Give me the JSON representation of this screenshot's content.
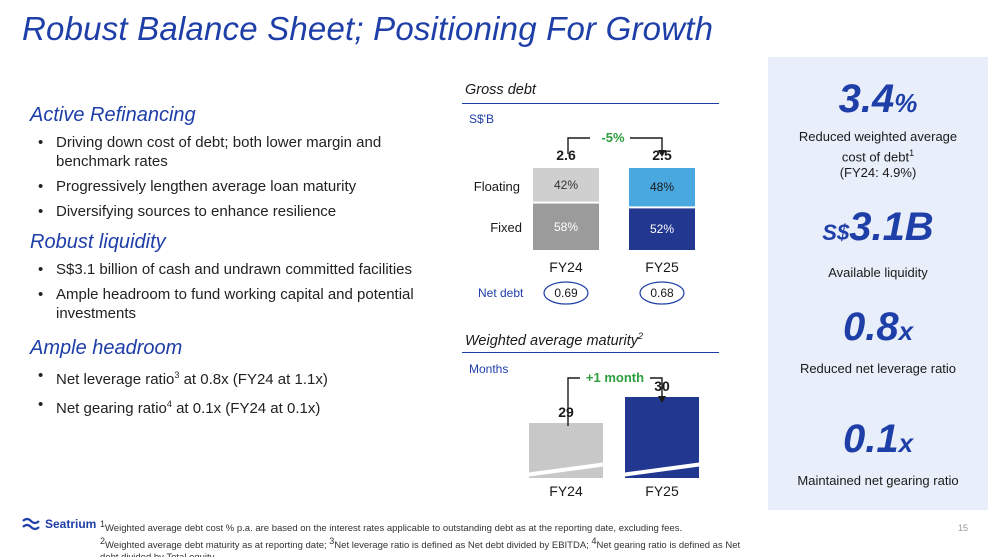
{
  "title": "Robust Balance Sheet; Positioning For Growth",
  "sections": [
    {
      "heading": "Active Refinancing",
      "bullets": [
        "Driving down cost of debt; both lower margin and benchmark rates",
        "Progressively lengthen average loan maturity",
        "Diversifying sources to enhance resilience"
      ]
    },
    {
      "heading": "Robust liquidity",
      "bullets": [
        "S$3.1 billion of cash and undrawn committed facilities",
        "Ample headroom to fund working capital and potential investments"
      ]
    },
    {
      "heading": "Ample headroom",
      "bullets": [
        {
          "pre": "Net leverage ratio",
          "sup": "3",
          "post": " at 0.8x (FY24 at 1.1x)"
        },
        {
          "pre": "Net gearing ratio",
          "sup": "4",
          "post": " at 0.1x (FY24 at 0.1x)"
        }
      ]
    }
  ],
  "gross_debt": {
    "title": "Gross debt",
    "unit": "S$'B",
    "change": "-5%",
    "row_labels": {
      "floating": "Floating",
      "fixed": "Fixed"
    },
    "net_debt_label": "Net debt"
  },
  "wam": {
    "title": "Weighted average maturity",
    "title_sup": "2",
    "unit": "Months",
    "change": "+1 month"
  },
  "chart_data": [
    {
      "type": "bar",
      "title": "Gross debt",
      "ylabel": "S$'B",
      "categories": [
        "FY24",
        "FY25"
      ],
      "totals": [
        2.6,
        2.5
      ],
      "series": [
        {
          "name": "Fixed",
          "values": [
            58,
            52
          ],
          "labels": [
            "58%",
            "52%"
          ],
          "colors": [
            "#9b9b9b",
            "#22378f"
          ]
        },
        {
          "name": "Floating",
          "values": [
            42,
            48
          ],
          "labels": [
            "42%",
            "48%"
          ],
          "colors": [
            "#cfcfcf",
            "#4aa8e0"
          ]
        }
      ],
      "total_labels": [
        "2.6",
        "2.5"
      ],
      "net_debt": [
        "0.69",
        "0.68"
      ],
      "annotation": "-5%"
    },
    {
      "type": "bar",
      "title": "Weighted average maturity",
      "ylabel": "Months",
      "categories": [
        "FY24",
        "FY25"
      ],
      "values": [
        29,
        30
      ],
      "value_labels": [
        "29",
        "30"
      ],
      "colors": [
        "#c8c8c8",
        "#22378f"
      ],
      "annotation": "+1 month"
    }
  ],
  "kpis": [
    {
      "value": "3.4",
      "suffix": "%",
      "prefix": "",
      "desc": [
        "Reduced weighted average",
        "cost of debt",
        "(FY24: 4.9%)"
      ],
      "desc_sup": "1"
    },
    {
      "value": "3.1B",
      "suffix": "",
      "prefix": "S$",
      "desc": [
        "Available liquidity"
      ]
    },
    {
      "value": "0.8",
      "suffix": "x",
      "prefix": "",
      "desc": [
        "Reduced net leverage ratio"
      ]
    },
    {
      "value": "0.1",
      "suffix": "x",
      "prefix": "",
      "desc": [
        "Maintained net gearing ratio"
      ]
    }
  ],
  "logo_text": "Seatrium",
  "footnotes": [
    "Weighted average debt cost % p.a. are based on the interest rates applicable to outstanding debt as at the reporting date, excluding fees.",
    "Weighted average debt maturity as at reporting date; ",
    "Net leverage ratio is defined as Net debt divided by EBITDA; ",
    "Net gearing ratio is defined as Net debt divided by Total equity."
  ],
  "page_number": "15",
  "colors": {
    "brand": "#1e3ea8",
    "kpi_bg": "#e8eefa",
    "fy25_dark": "#22378f",
    "fy25_light": "#4aa8e0",
    "fy24_dark": "#9b9b9b",
    "fy24_light": "#cfcfcf",
    "accent_green": "#2e9e3e"
  }
}
